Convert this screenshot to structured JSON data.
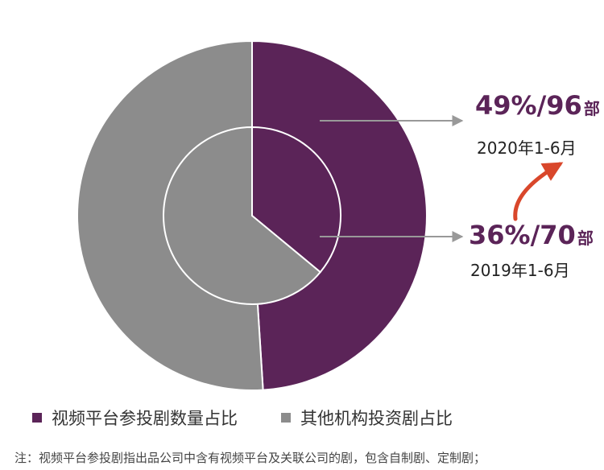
{
  "chart_data": {
    "type": "pie",
    "rings": [
      {
        "period": "2020年1-6月",
        "label_value": "49%/96",
        "label_unit": "部",
        "slices": [
          {
            "name": "视频平台参投剧数量占比",
            "value": 49
          },
          {
            "name": "其他机构投资剧占比",
            "value": 51
          }
        ]
      },
      {
        "period": "2019年1-6月",
        "label_value": "36%/70",
        "label_unit": "部",
        "slices": [
          {
            "name": "视频平台参投剧数量占比",
            "value": 36
          },
          {
            "name": "其他机构投资剧占比",
            "value": 64
          }
        ]
      }
    ],
    "legend": [
      {
        "name": "视频平台参投剧数量占比",
        "color": "#5b2458"
      },
      {
        "name": "其他机构投资剧占比",
        "color": "#8c8c8c"
      }
    ],
    "colors": {
      "platform": "#5b2458",
      "other": "#8c8c8c",
      "arrow_trend": "#d9472b",
      "leader": "#999999"
    }
  },
  "note": "注：视频平台参投剧指出品公司中含有视频平台及关联公司的剧，包含自制剧、定制剧；"
}
